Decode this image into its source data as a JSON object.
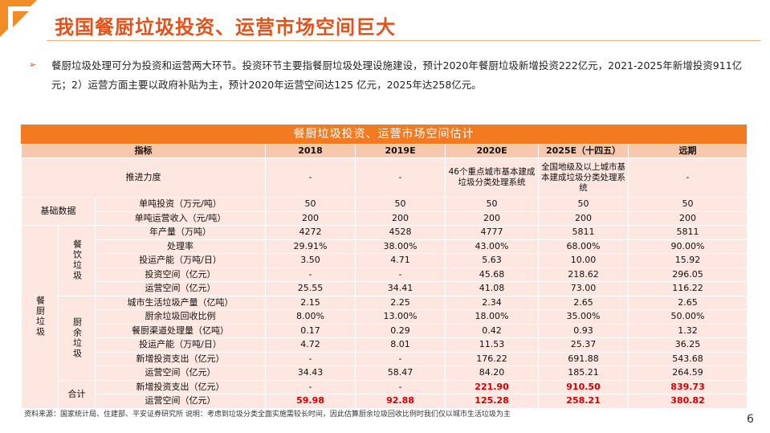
{
  "title": "我国餐厨垃圾投资、运营市场空间巨大",
  "bullet_symbol": "➢",
  "paragraph": "餐厨垃圾处理可分为投资和运营两大环节。投资环节主要指餐厨垃圾处理设施建设，预计2020年餐厨垃圾新增投资222亿元，2021-2025年新增投资911亿元；2）运营方面主要以政府补贴为主，预计2020年运营空间达125 亿元，2025年达258亿元。",
  "table": {
    "title": "餐厨垃圾投资、运营市场空间估计",
    "headers": [
      "指标",
      "2018",
      "2019E",
      "2020E",
      "2025E（十四五）",
      "远期"
    ],
    "push": {
      "label": "推进力度",
      "values": [
        "-",
        "-",
        "46个重点城市基本建成垃圾分类处理系统",
        "全国地级及以上城市基本建成垃圾分类处理系统",
        "-"
      ]
    },
    "basic": {
      "group": "基础数据",
      "rows": [
        {
          "label": "单吨投资（万元/吨）",
          "values": [
            "50",
            "50",
            "50",
            "50",
            "50"
          ]
        },
        {
          "label": "单吨运营收入（元/吨）",
          "values": [
            "200",
            "200",
            "200",
            "200",
            "200"
          ]
        }
      ]
    },
    "kitchen_group": "餐厨垃圾",
    "catering": {
      "group": "餐饮垃圾",
      "rows": [
        {
          "label": "年产量（万吨）",
          "values": [
            "4272",
            "4528",
            "4777",
            "5811",
            "5811"
          ]
        },
        {
          "label": "处理率",
          "values": [
            "29.91%",
            "38.00%",
            "43.00%",
            "68.00%",
            "90.00%"
          ]
        },
        {
          "label": "投运产能（万吨/日）",
          "values": [
            "3.50",
            "4.71",
            "5.63",
            "10.00",
            "15.92"
          ]
        },
        {
          "label": "投资空间（亿元）",
          "values": [
            "-",
            "-",
            "45.68",
            "218.62",
            "296.05"
          ]
        },
        {
          "label": "运营空间（亿元）",
          "values": [
            "25.55",
            "34.41",
            "41.08",
            "73.00",
            "116.22"
          ]
        }
      ]
    },
    "kitchen": {
      "group": "厨余垃圾",
      "rows": [
        {
          "label": "城市生活垃圾产量（亿吨）",
          "values": [
            "2.15",
            "2.25",
            "2.34",
            "2.65",
            "2.65"
          ]
        },
        {
          "label": "厨余垃圾回收比例",
          "values": [
            "8.00%",
            "13.00%",
            "18.00%",
            "35.00%",
            "50.00%"
          ]
        },
        {
          "label": "餐厨渠道处理量（亿吨）",
          "values": [
            "0.17",
            "0.29",
            "0.42",
            "0.93",
            "1.32"
          ]
        },
        {
          "label": "投运产能（万吨/日）",
          "values": [
            "4.72",
            "8.01",
            "11.53",
            "25.37",
            "36.25"
          ]
        },
        {
          "label": "新增投资支出（亿元）",
          "values": [
            "-",
            "-",
            "176.22",
            "691.88",
            "543.68"
          ]
        },
        {
          "label": "运营空间（亿元）",
          "values": [
            "34.43",
            "58.47",
            "84.20",
            "185.21",
            "264.59"
          ]
        }
      ]
    },
    "total": {
      "group": "合计",
      "rows": [
        {
          "label": "新增投资支出（亿元）",
          "values": [
            "-",
            "-",
            "221.90",
            "910.50",
            "839.73"
          ]
        },
        {
          "label": "运营空间（亿元）",
          "values": [
            "59.98",
            "92.88",
            "125.28",
            "258.21",
            "380.82"
          ]
        }
      ]
    }
  },
  "source": "资料来源：国家统计局、住建部、平安证券研究所 说明：考虑到垃圾分类全面实施需较长时间，因此估算厨余垃圾回收比例时我们仅以城市生活垃圾为主",
  "page_number": "6",
  "colors": {
    "accent": "#f27a20",
    "title": "#e0531b",
    "cell": "#fde7e0",
    "header": "#f7c8ad",
    "highlight": "#d00000"
  }
}
